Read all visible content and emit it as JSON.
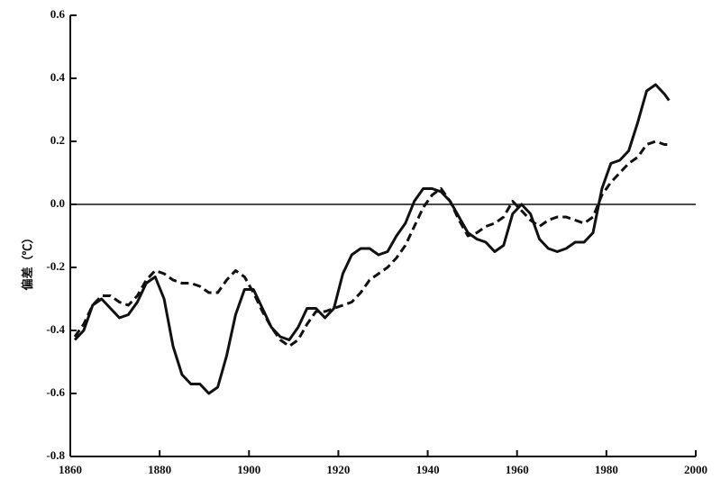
{
  "chart_data": {
    "type": "line",
    "y_label": "偏差（℃）",
    "x": [
      1861,
      1863,
      1865,
      1867,
      1869,
      1871,
      1873,
      1875,
      1877,
      1879,
      1881,
      1883,
      1885,
      1887,
      1889,
      1891,
      1893,
      1895,
      1897,
      1899,
      1901,
      1903,
      1905,
      1907,
      1909,
      1911,
      1913,
      1915,
      1917,
      1919,
      1921,
      1923,
      1925,
      1927,
      1929,
      1931,
      1933,
      1935,
      1937,
      1939,
      1941,
      1943,
      1945,
      1947,
      1949,
      1951,
      1953,
      1955,
      1957,
      1959,
      1961,
      1963,
      1965,
      1967,
      1969,
      1971,
      1973,
      1975,
      1977,
      1979,
      1981,
      1983,
      1985,
      1987,
      1989,
      1991,
      1993,
      1994
    ],
    "series": [
      {
        "color": "#111111",
        "dashed": false,
        "values": [
          -0.43,
          -0.4,
          -0.32,
          -0.3,
          -0.33,
          -0.36,
          -0.35,
          -0.31,
          -0.25,
          -0.23,
          -0.3,
          -0.45,
          -0.54,
          -0.57,
          -0.57,
          -0.6,
          -0.58,
          -0.48,
          -0.35,
          -0.27,
          -0.27,
          -0.33,
          -0.39,
          -0.42,
          -0.43,
          -0.39,
          -0.33,
          -0.33,
          -0.36,
          -0.33,
          -0.22,
          -0.16,
          -0.14,
          -0.14,
          -0.16,
          -0.15,
          -0.1,
          -0.06,
          0.01,
          0.05,
          0.05,
          0.04,
          0.01,
          -0.04,
          -0.09,
          -0.11,
          -0.12,
          -0.15,
          -0.13,
          -0.03,
          0.0,
          -0.03,
          -0.11,
          -0.14,
          -0.15,
          -0.14,
          -0.12,
          -0.12,
          -0.09,
          0.05,
          0.13,
          0.14,
          0.17,
          0.26,
          0.36,
          0.38,
          0.35,
          0.33
        ]
      },
      {
        "color": "#111111",
        "dashed": true,
        "values": [
          -0.42,
          -0.38,
          -0.32,
          -0.29,
          -0.29,
          -0.31,
          -0.32,
          -0.29,
          -0.24,
          -0.21,
          -0.22,
          -0.24,
          -0.25,
          -0.25,
          -0.26,
          -0.28,
          -0.28,
          -0.24,
          -0.21,
          -0.23,
          -0.28,
          -0.34,
          -0.39,
          -0.43,
          -0.45,
          -0.43,
          -0.38,
          -0.34,
          -0.34,
          -0.33,
          -0.32,
          -0.31,
          -0.28,
          -0.24,
          -0.22,
          -0.2,
          -0.17,
          -0.13,
          -0.07,
          -0.01,
          0.03,
          0.05,
          0.01,
          -0.05,
          -0.1,
          -0.09,
          -0.07,
          -0.06,
          -0.04,
          0.01,
          -0.02,
          -0.05,
          -0.07,
          -0.05,
          -0.04,
          -0.04,
          -0.05,
          -0.06,
          -0.04,
          0.03,
          0.07,
          0.1,
          0.13,
          0.15,
          0.19,
          0.2,
          0.19,
          0.19
        ]
      }
    ],
    "xlim": [
      1860,
      2000
    ],
    "xticks": [
      1860,
      1880,
      1900,
      1920,
      1940,
      1960,
      1980,
      2000
    ],
    "ylim": [
      -0.8,
      0.6
    ],
    "yticks": [
      -0.8,
      -0.6,
      -0.4,
      -0.2,
      {
        "value": 0,
        "label": "0.0"
      },
      0.2,
      0.4,
      0.6
    ],
    "zero_line": true
  }
}
